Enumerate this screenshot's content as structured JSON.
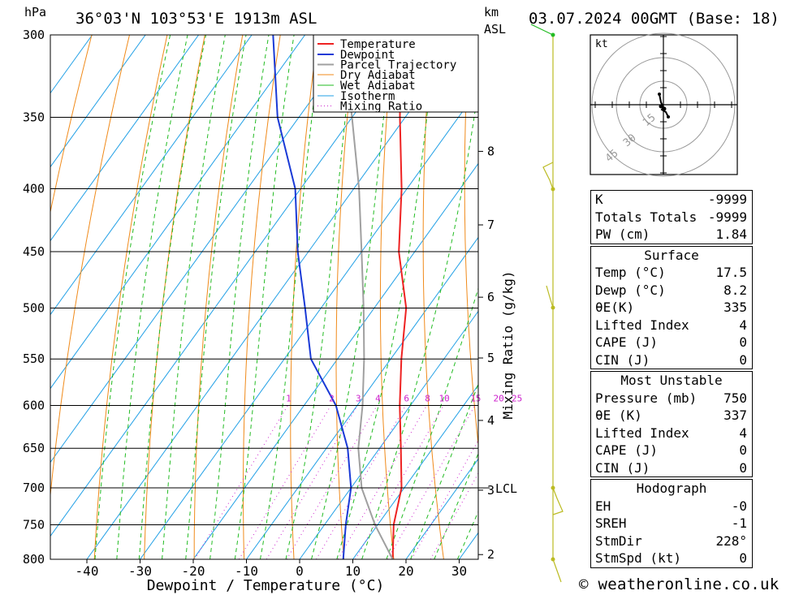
{
  "header": {
    "pressure_unit": "hPa",
    "location": "36°03'N 103°53'E 1913m ASL",
    "height_unit": "km",
    "height_unit_sub": "ASL",
    "datetime": "03.07.2024 00GMT (Base: 18)"
  },
  "chart_data": {
    "type": "line",
    "title": "36°03'N 103°53'E 1913m ASL",
    "xlabel": "Dewpoint / Temperature (°C)",
    "ylabel": "hPa",
    "right_label": "Mixing Ratio (g/kg)",
    "xlim": [
      -46,
      34
    ],
    "ylim": [
      800,
      300
    ],
    "pressure_levels": [
      300,
      350,
      400,
      450,
      500,
      550,
      600,
      650,
      700,
      750,
      800
    ],
    "x_ticks": [
      -40,
      -30,
      -20,
      -10,
      0,
      10,
      20,
      30
    ],
    "height_ticks": [
      {
        "km": "8",
        "p": 373
      },
      {
        "km": "7",
        "p": 428
      },
      {
        "km": "6",
        "p": 490
      },
      {
        "km": "5",
        "p": 549
      },
      {
        "km": "4",
        "p": 617
      },
      {
        "km": "3",
        "p": 703
      },
      {
        "km": "2",
        "p": 793
      }
    ],
    "lcl_label": "LCL",
    "lcl_pressure": 700,
    "mixing_ratio_labels": [
      "1",
      "2",
      "3",
      "4",
      "6",
      "8",
      "10",
      "15",
      "20",
      "25"
    ],
    "mixing_ratio_values": [
      1,
      2,
      3,
      4,
      6,
      8,
      10,
      15,
      20,
      25
    ],
    "legend": [
      "Temperature",
      "Dewpoint",
      "Parcel Trajectory",
      "Dry Adiabat",
      "Wet Adiabat",
      "Isotherm",
      "Mixing Ratio"
    ],
    "series": [
      {
        "name": "Temperature",
        "color": "#ee2222",
        "p": [
          800,
          750,
          700,
          650,
          600,
          550,
          500,
          450,
          400,
          350,
          300
        ],
        "t": [
          17.5,
          13,
          9.5,
          4,
          -2,
          -8,
          -14,
          -23,
          -31,
          -41,
          -52
        ]
      },
      {
        "name": "Dewpoint",
        "color": "#1a3ad6",
        "p": [
          800,
          750,
          700,
          650,
          600,
          550,
          500,
          450,
          400,
          350,
          300
        ],
        "t": [
          8.2,
          4,
          0,
          -6,
          -14,
          -25,
          -33,
          -42,
          -51,
          -64,
          -76
        ]
      },
      {
        "name": "Parcel Trajectory",
        "color": "#a0a0a0",
        "p": [
          800,
          750,
          700,
          650,
          600,
          550,
          500,
          450,
          400,
          350,
          300
        ],
        "t": [
          17.5,
          9.5,
          2,
          -4,
          -9,
          -15,
          -22,
          -30,
          -39,
          -50,
          -63
        ]
      }
    ]
  },
  "hodograph": {
    "unit": "kt",
    "ring_labels": [
      "15",
      "30",
      "45"
    ]
  },
  "indices": {
    "rows": [
      {
        "label": "K",
        "value": "-9999"
      },
      {
        "label": "Totals Totals",
        "value": "-9999"
      },
      {
        "label": "PW (cm)",
        "value": "1.84"
      }
    ]
  },
  "surface": {
    "title": "Surface",
    "rows": [
      {
        "label": "Temp (°C)",
        "value": "17.5"
      },
      {
        "label": "Dewp (°C)",
        "value": "8.2"
      },
      {
        "label": "θE(K)",
        "value": "335"
      },
      {
        "label": "Lifted Index",
        "value": "4"
      },
      {
        "label": "CAPE (J)",
        "value": "0"
      },
      {
        "label": "CIN (J)",
        "value": "0"
      }
    ]
  },
  "most_unstable": {
    "title": "Most Unstable",
    "rows": [
      {
        "label": "Pressure (mb)",
        "value": "750"
      },
      {
        "label": "θE (K)",
        "value": "337"
      },
      {
        "label": "Lifted Index",
        "value": "4"
      },
      {
        "label": "CAPE (J)",
        "value": "0"
      },
      {
        "label": "CIN (J)",
        "value": "0"
      }
    ]
  },
  "hodograph_stats": {
    "title": "Hodograph",
    "rows": [
      {
        "label": "EH",
        "value": "-0"
      },
      {
        "label": "SREH",
        "value": "-1"
      },
      {
        "label": "StmDir",
        "value": "228°"
      },
      {
        "label": "StmSpd (kt)",
        "value": "0"
      }
    ]
  },
  "footer": {
    "copyright": "© weatheronline.co.uk"
  },
  "colors": {
    "temperature": "#ee2222",
    "dewpoint": "#1a3ad6",
    "parcel": "#a0a0a0",
    "dry_adiabat": "#f08a1a",
    "wet_adiabat": "#22bb22",
    "isotherm": "#22a0e6",
    "mixing_ratio": "#cc22cc",
    "wind": "#bbbb22"
  }
}
